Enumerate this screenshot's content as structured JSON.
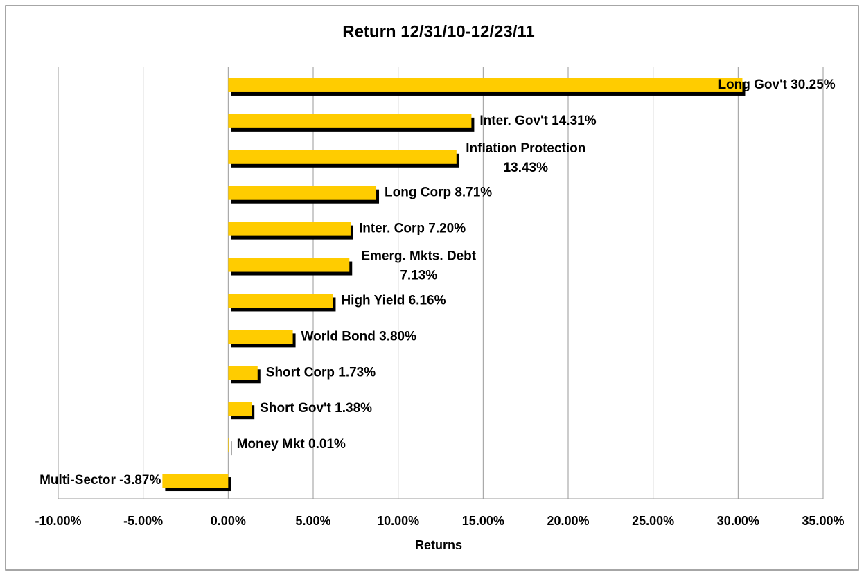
{
  "chart_data": {
    "type": "bar",
    "orientation": "horizontal",
    "title": "Return 12/31/10-12/23/11",
    "x_label": "Returns",
    "categories": [
      "Long Gov't",
      "Inter. Gov't",
      "Inflation Protection",
      "Long Corp",
      "Inter. Corp",
      "Emerg. Mkts. Debt",
      "High Yield",
      "World Bond",
      "Short Corp",
      "Short Gov't",
      "Money Mkt",
      "Multi-Sector"
    ],
    "values": [
      30.25,
      14.31,
      13.43,
      8.71,
      7.2,
      7.13,
      6.16,
      3.8,
      1.73,
      1.38,
      0.01,
      -3.87
    ],
    "value_labels": [
      "30.25%",
      "14.31%",
      "13.43%",
      "8.71%",
      "7.20%",
      "7.13%",
      "6.16%",
      "3.80%",
      "1.73%",
      "1.38%",
      "0.01%",
      "-3.87%"
    ],
    "color": "#ffcc00",
    "shadow_color": "#000000",
    "xlim": [
      -10,
      35
    ],
    "xticks": [
      {
        "value": -10,
        "label": "-10.00%"
      },
      {
        "value": -5,
        "label": "-5.00%"
      },
      {
        "value": 0,
        "label": "0.00%"
      },
      {
        "value": 5,
        "label": "5.00%"
      },
      {
        "value": 10,
        "label": "10.00%"
      },
      {
        "value": 15,
        "label": "15.00%"
      },
      {
        "value": 20,
        "label": "20.00%"
      },
      {
        "value": 25,
        "label": "25.00%"
      },
      {
        "value": 30,
        "label": "30.00%"
      },
      {
        "value": 35,
        "label": "35.00%"
      }
    ],
    "grid": true
  }
}
